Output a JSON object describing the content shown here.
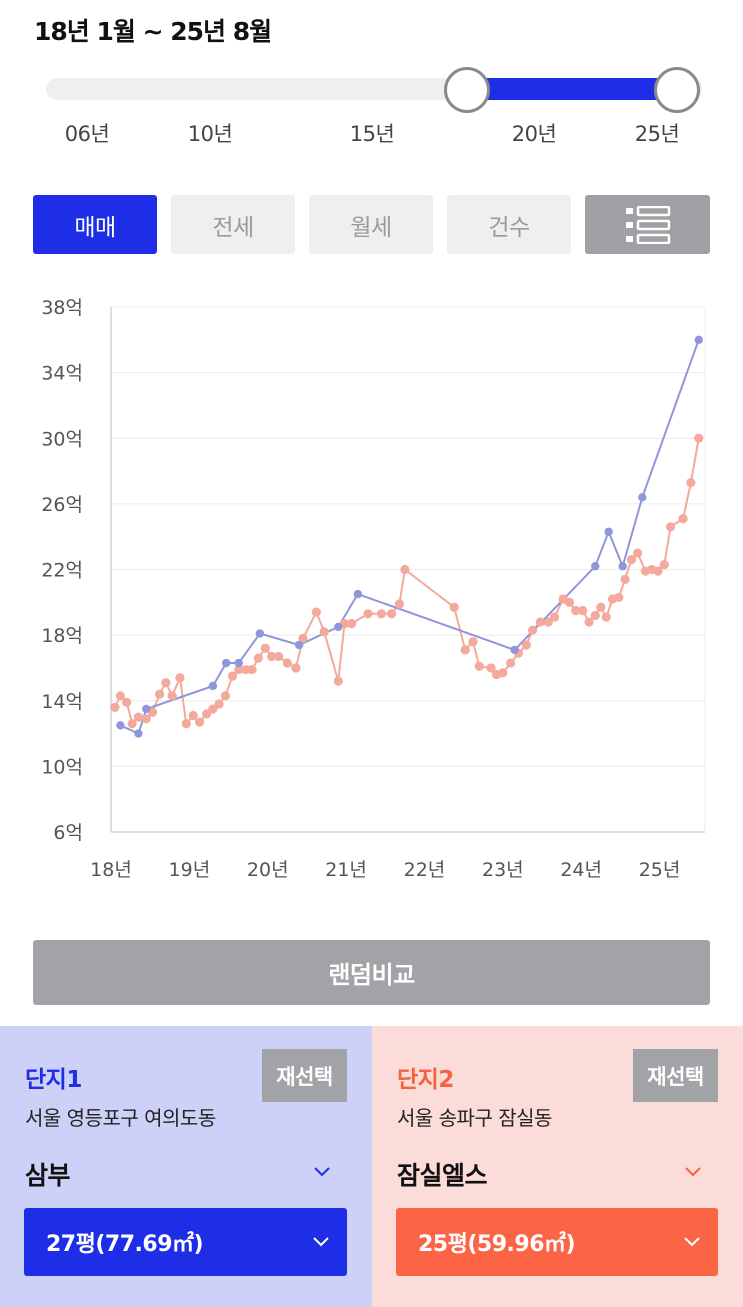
{
  "range": {
    "title": "18년 1월 ~ 25년 8월",
    "start_fraction": 0.645,
    "end_fraction": 0.965,
    "ticks": [
      "06년",
      "10년",
      "15년",
      "20년",
      "25년"
    ]
  },
  "tabs": [
    {
      "label": "매매",
      "active": true
    },
    {
      "label": "전세",
      "active": false
    },
    {
      "label": "월세",
      "active": false
    },
    {
      "label": "건수",
      "active": false
    }
  ],
  "list_icon": "list-view-icon",
  "chart_data": {
    "type": "line",
    "y_tick_labels": [
      "38억",
      "34억",
      "30억",
      "26억",
      "22억",
      "18억",
      "14억",
      "10억",
      "6억"
    ],
    "y_ticks": [
      38,
      34,
      30,
      26,
      22,
      18,
      14,
      10,
      6
    ],
    "ylim": [
      6,
      38
    ],
    "x_tick_labels": [
      "18년",
      "19년",
      "20년",
      "21년",
      "22년",
      "23년",
      "24년",
      "25년"
    ],
    "x_ticks": [
      2018,
      2019,
      2020,
      2021,
      2022,
      2023,
      2024,
      2025
    ],
    "xlim": [
      2018.0,
      2025.58
    ],
    "grid": true,
    "series": [
      {
        "color": "#8f96dc",
        "points": [
          [
            2018.12,
            12.5
          ],
          [
            2018.35,
            12.0
          ],
          [
            2018.45,
            13.5
          ],
          [
            2019.3,
            14.9
          ],
          [
            2019.47,
            16.3
          ],
          [
            2019.63,
            16.3
          ],
          [
            2019.9,
            18.1
          ],
          [
            2020.4,
            17.4
          ],
          [
            2020.9,
            18.5
          ],
          [
            2021.15,
            20.5
          ],
          [
            2023.15,
            17.1
          ],
          [
            2024.18,
            22.2
          ],
          [
            2024.35,
            24.3
          ],
          [
            2024.53,
            22.2
          ],
          [
            2024.78,
            26.4
          ],
          [
            2025.5,
            36.0
          ]
        ]
      },
      {
        "color": "#f3a99c",
        "points": [
          [
            2018.05,
            13.6
          ],
          [
            2018.12,
            14.3
          ],
          [
            2018.2,
            13.9
          ],
          [
            2018.27,
            12.6
          ],
          [
            2018.35,
            13.0
          ],
          [
            2018.45,
            12.9
          ],
          [
            2018.53,
            13.3
          ],
          [
            2018.62,
            14.4
          ],
          [
            2018.7,
            15.1
          ],
          [
            2018.78,
            14.3
          ],
          [
            2018.88,
            15.4
          ],
          [
            2018.96,
            12.6
          ],
          [
            2019.05,
            13.1
          ],
          [
            2019.13,
            12.7
          ],
          [
            2019.22,
            13.2
          ],
          [
            2019.3,
            13.5
          ],
          [
            2019.38,
            13.8
          ],
          [
            2019.46,
            14.3
          ],
          [
            2019.55,
            15.5
          ],
          [
            2019.63,
            15.9
          ],
          [
            2019.72,
            15.9
          ],
          [
            2019.8,
            15.9
          ],
          [
            2019.88,
            16.6
          ],
          [
            2019.97,
            17.2
          ],
          [
            2020.05,
            16.7
          ],
          [
            2020.14,
            16.7
          ],
          [
            2020.25,
            16.3
          ],
          [
            2020.36,
            16.0
          ],
          [
            2020.45,
            17.8
          ],
          [
            2020.62,
            19.4
          ],
          [
            2020.72,
            18.2
          ],
          [
            2020.9,
            15.2
          ],
          [
            2020.98,
            18.7
          ],
          [
            2021.07,
            18.7
          ],
          [
            2021.28,
            19.3
          ],
          [
            2021.45,
            19.3
          ],
          [
            2021.58,
            19.3
          ],
          [
            2021.68,
            19.9
          ],
          [
            2021.75,
            22.0
          ],
          [
            2022.38,
            19.7
          ],
          [
            2022.52,
            17.1
          ],
          [
            2022.62,
            17.6
          ],
          [
            2022.7,
            16.1
          ],
          [
            2022.85,
            16.0
          ],
          [
            2022.92,
            15.6
          ],
          [
            2023.0,
            15.7
          ],
          [
            2023.1,
            16.3
          ],
          [
            2023.2,
            16.9
          ],
          [
            2023.3,
            17.4
          ],
          [
            2023.38,
            18.3
          ],
          [
            2023.48,
            18.8
          ],
          [
            2023.58,
            18.8
          ],
          [
            2023.66,
            19.1
          ],
          [
            2023.77,
            20.2
          ],
          [
            2023.85,
            20.0
          ],
          [
            2023.93,
            19.5
          ],
          [
            2024.02,
            19.5
          ],
          [
            2024.1,
            18.8
          ],
          [
            2024.18,
            19.2
          ],
          [
            2024.25,
            19.7
          ],
          [
            2024.32,
            19.1
          ],
          [
            2024.4,
            20.2
          ],
          [
            2024.48,
            20.3
          ],
          [
            2024.56,
            21.4
          ],
          [
            2024.64,
            22.6
          ],
          [
            2024.72,
            23.0
          ],
          [
            2024.82,
            21.9
          ],
          [
            2024.9,
            22.0
          ],
          [
            2024.98,
            21.9
          ],
          [
            2025.06,
            22.3
          ],
          [
            2025.14,
            24.6
          ],
          [
            2025.3,
            25.1
          ],
          [
            2025.4,
            27.3
          ],
          [
            2025.5,
            30.0
          ]
        ]
      }
    ]
  },
  "random_compare_label": "랜덤비교",
  "complex1": {
    "title": "단지1",
    "reselect": "재선택",
    "region": "서울 영등포구 여의도동",
    "name": "삼부",
    "size": "27평(77.69㎡)",
    "accent": "#1e2ee6"
  },
  "complex2": {
    "title": "단지2",
    "reselect": "재선택",
    "region": "서울 송파구 잠실동",
    "name": "잠실엘스",
    "size": "25평(59.96㎡)",
    "accent": "#fb6545"
  }
}
